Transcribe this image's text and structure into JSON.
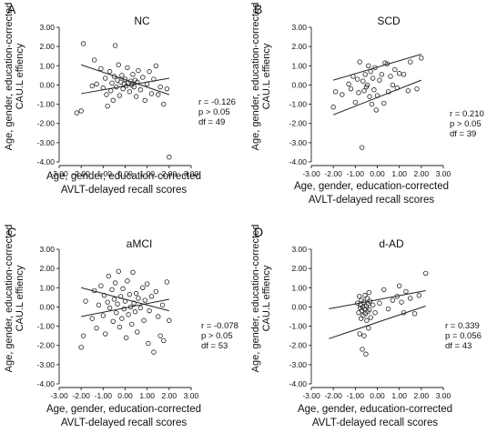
{
  "figure": {
    "panels": [
      {
        "letter": "A",
        "title": "NC",
        "ylabel_1": "Age, gender, education-corrected",
        "ylabel_2": "CAU.L effiency",
        "xlabel_1": "Age, gender, education-corrected",
        "xlabel_2": "AVLT-delayed recall scores",
        "stats": {
          "r": "r = -0.126",
          "p": "p > 0.05",
          "df": "df = 49"
        }
      },
      {
        "letter": "B",
        "title": "SCD",
        "ylabel_1": "Age, gender, education-corrected",
        "ylabel_2": "CAU.L effiency",
        "xlabel_1": "Age, gender, education-corrected",
        "xlabel_2": "AVLT-delayed recall scores",
        "stats": {
          "r": "r = 0.210",
          "p": "p > 0.05",
          "df": "df = 39"
        }
      },
      {
        "letter": "C",
        "title": "aMCI",
        "ylabel_1": "Age, gender, education-corrected",
        "ylabel_2": "CAU.L effiency",
        "xlabel_1": "Age, gender, education-corrected",
        "xlabel_2": "AVLT-delayed recall scores",
        "stats": {
          "r": "r = -0.078",
          "p": "p > 0.05",
          "df": "df = 53"
        }
      },
      {
        "letter": "D",
        "title": "d-AD",
        "ylabel_1": "Age, gender, education-corrected",
        "ylabel_2": "CAU.L effiency",
        "xlabel_1": "Age, gender, education-corrected",
        "xlabel_2": "AVLT-delayed recall scores",
        "stats": {
          "r": "r = 0.339",
          "p": "p = 0.056",
          "df": "df = 43"
        }
      }
    ]
  },
  "chart_data": [
    {
      "type": "scatter",
      "panel": "A",
      "title": "NC",
      "xlabel": "Age, gender, education-corrected AVLT-delayed recall scores",
      "ylabel": "Age, gender, education-corrected CAU.L effiency",
      "xlim": [
        -3,
        3
      ],
      "ylim": [
        -4,
        3
      ],
      "xticks": [
        "-3.00",
        "-2.00",
        "-1.00",
        "0.00",
        "1.00",
        "2.00",
        "3.00"
      ],
      "yticks": [
        "3.00",
        "2.00",
        "1.00",
        "0.00",
        "-1.00",
        "-2.00",
        "-3.00",
        "-4.00"
      ],
      "grid": false,
      "fit_line": {
        "slope": -0.126,
        "intercept": 0.0
      },
      "ci_lines": {
        "upper": [
          [
            -2.0,
            1.05
          ],
          [
            2.0,
            -0.5
          ]
        ],
        "lower": [
          [
            -2.0,
            -0.45
          ],
          [
            2.0,
            0.35
          ]
        ]
      },
      "points": [
        [
          -2.2,
          -1.45
        ],
        [
          -2.0,
          -1.35
        ],
        [
          -1.9,
          2.15
        ],
        [
          -1.5,
          -0.05
        ],
        [
          -1.4,
          1.3
        ],
        [
          -1.3,
          0.05
        ],
        [
          -1.1,
          0.85
        ],
        [
          -1.0,
          -0.15
        ],
        [
          -0.9,
          0.35
        ],
        [
          -0.85,
          -0.5
        ],
        [
          -0.8,
          -1.1
        ],
        [
          -0.7,
          0.7
        ],
        [
          -0.65,
          -0.3
        ],
        [
          -0.6,
          0.1
        ],
        [
          -0.55,
          -0.8
        ],
        [
          -0.5,
          0.45
        ],
        [
          -0.45,
          2.05
        ],
        [
          -0.4,
          -0.1
        ],
        [
          -0.35,
          0.25
        ],
        [
          -0.3,
          1.05
        ],
        [
          -0.25,
          -0.55
        ],
        [
          -0.2,
          0.15
        ],
        [
          -0.15,
          0.5
        ],
        [
          -0.1,
          -0.2
        ],
        [
          -0.05,
          0.05
        ],
        [
          0.0,
          0.3
        ],
        [
          0.05,
          -0.05
        ],
        [
          0.1,
          0.9
        ],
        [
          0.15,
          0.1
        ],
        [
          0.2,
          -0.35
        ],
        [
          0.25,
          0.2
        ],
        [
          0.3,
          0.0
        ],
        [
          0.35,
          0.55
        ],
        [
          0.4,
          -0.1
        ],
        [
          0.45,
          0.25
        ],
        [
          0.5,
          -0.6
        ],
        [
          0.55,
          0.15
        ],
        [
          0.6,
          0.75
        ],
        [
          0.7,
          -0.25
        ],
        [
          0.8,
          0.4
        ],
        [
          0.9,
          -0.8
        ],
        [
          1.0,
          0.05
        ],
        [
          1.1,
          0.7
        ],
        [
          1.2,
          -0.45
        ],
        [
          1.3,
          0.3
        ],
        [
          1.4,
          1.0
        ],
        [
          1.5,
          -0.5
        ],
        [
          1.6,
          -0.1
        ],
        [
          1.75,
          -1.0
        ],
        [
          1.9,
          -0.2
        ],
        [
          2.0,
          -3.75
        ]
      ]
    },
    {
      "type": "scatter",
      "panel": "B",
      "title": "SCD",
      "xlabel": "Age, gender, education-corrected AVLT-delayed recall scores",
      "ylabel": "Age, gender, education-corrected CAU.L effiency",
      "xlim": [
        -3,
        3
      ],
      "ylim": [
        -4,
        3
      ],
      "xticks": [
        "-3.00",
        "-2.00",
        "-1.00",
        "0.00",
        "1.00",
        "2.00",
        "3.00"
      ],
      "yticks": [
        "3.00",
        "2.00",
        "1.00",
        "0.00",
        "-1.00",
        "-2.00",
        "-3.00",
        "-4.00"
      ],
      "grid": false,
      "fit_line": {
        "slope": 0.21,
        "intercept": 0.0
      },
      "ci_lines": {
        "upper": [
          [
            -2.0,
            0.25
          ],
          [
            2.0,
            1.6
          ]
        ],
        "lower": [
          [
            -2.0,
            -1.55
          ],
          [
            2.0,
            0.25
          ]
        ]
      },
      "points": [
        [
          -2.0,
          -1.15
        ],
        [
          -1.9,
          -0.35
        ],
        [
          -1.6,
          -0.5
        ],
        [
          -1.3,
          0.05
        ],
        [
          -1.2,
          -0.2
        ],
        [
          -1.1,
          0.45
        ],
        [
          -1.0,
          -0.9
        ],
        [
          -0.9,
          0.3
        ],
        [
          -0.85,
          -0.4
        ],
        [
          -0.8,
          1.2
        ],
        [
          -0.7,
          -3.25
        ],
        [
          -0.65,
          0.2
        ],
        [
          -0.6,
          -0.3
        ],
        [
          -0.55,
          0.55
        ],
        [
          -0.5,
          -0.1
        ],
        [
          -0.45,
          0.0
        ],
        [
          -0.4,
          1.0
        ],
        [
          -0.35,
          -0.6
        ],
        [
          -0.3,
          0.7
        ],
        [
          -0.25,
          -1.0
        ],
        [
          -0.2,
          0.35
        ],
        [
          -0.15,
          -0.25
        ],
        [
          -0.1,
          0.9
        ],
        [
          -0.05,
          -1.3
        ],
        [
          0.0,
          -0.55
        ],
        [
          0.1,
          0.25
        ],
        [
          0.2,
          0.55
        ],
        [
          0.3,
          -0.95
        ],
        [
          0.35,
          1.15
        ],
        [
          0.45,
          1.1
        ],
        [
          0.5,
          -0.35
        ],
        [
          0.6,
          0.45
        ],
        [
          0.7,
          0.0
        ],
        [
          0.8,
          0.8
        ],
        [
          0.9,
          -0.15
        ],
        [
          1.0,
          0.6
        ],
        [
          1.2,
          0.55
        ],
        [
          1.4,
          -0.3
        ],
        [
          1.5,
          1.2
        ],
        [
          1.8,
          -0.2
        ],
        [
          2.0,
          1.4
        ]
      ]
    },
    {
      "type": "scatter",
      "panel": "C",
      "title": "aMCI",
      "xlabel": "Age, gender, education-corrected AVLT-delayed recall scores",
      "ylabel": "Age, gender, education-corrected CAU.L effiency",
      "xlim": [
        -3,
        3
      ],
      "ylim": [
        -4,
        3
      ],
      "xticks": [
        "-3.00",
        "-2.00",
        "-1.00",
        "0.00",
        "1.00",
        "2.00",
        "3.00"
      ],
      "yticks": [
        "3.00",
        "2.00",
        "1.00",
        "0.00",
        "-1.00",
        "-2.00",
        "-3.00",
        "-4.00"
      ],
      "grid": false,
      "fit_line": {
        "slope": -0.078,
        "intercept": 0.0
      },
      "ci_lines": {
        "upper": [
          [
            -2.0,
            1.0
          ],
          [
            2.0,
            -0.2
          ]
        ],
        "lower": [
          [
            -2.0,
            -0.5
          ],
          [
            2.0,
            0.4
          ]
        ]
      },
      "points": [
        [
          -2.0,
          -2.1
        ],
        [
          -1.9,
          -1.5
        ],
        [
          -1.8,
          0.3
        ],
        [
          -1.5,
          -0.6
        ],
        [
          -1.4,
          0.85
        ],
        [
          -1.3,
          -1.1
        ],
        [
          -1.2,
          0.1
        ],
        [
          -1.1,
          1.1
        ],
        [
          -1.0,
          -0.45
        ],
        [
          -0.95,
          0.6
        ],
        [
          -0.9,
          -1.4
        ],
        [
          -0.8,
          0.25
        ],
        [
          -0.75,
          1.6
        ],
        [
          -0.7,
          -0.05
        ],
        [
          -0.6,
          0.9
        ],
        [
          -0.55,
          -0.75
        ],
        [
          -0.5,
          0.4
        ],
        [
          -0.45,
          1.25
        ],
        [
          -0.4,
          -0.3
        ],
        [
          -0.35,
          0.15
        ],
        [
          -0.3,
          1.85
        ],
        [
          -0.25,
          -1.05
        ],
        [
          -0.2,
          0.55
        ],
        [
          -0.15,
          -0.6
        ],
        [
          -0.1,
          0.95
        ],
        [
          -0.05,
          -0.1
        ],
        [
          0.0,
          0.3
        ],
        [
          0.05,
          -1.6
        ],
        [
          0.1,
          1.35
        ],
        [
          0.15,
          -0.4
        ],
        [
          0.2,
          0.65
        ],
        [
          0.25,
          0.0
        ],
        [
          0.3,
          -0.9
        ],
        [
          0.35,
          1.8
        ],
        [
          0.4,
          0.2
        ],
        [
          0.45,
          -0.25
        ],
        [
          0.5,
          0.7
        ],
        [
          0.55,
          -1.3
        ],
        [
          0.6,
          0.45
        ],
        [
          0.7,
          -0.05
        ],
        [
          0.8,
          1.0
        ],
        [
          0.85,
          -0.7
        ],
        [
          0.9,
          0.35
        ],
        [
          1.0,
          1.2
        ],
        [
          1.05,
          -1.9
        ],
        [
          1.1,
          -0.2
        ],
        [
          1.2,
          0.55
        ],
        [
          1.3,
          -2.35
        ],
        [
          1.4,
          0.8
        ],
        [
          1.5,
          -0.5
        ],
        [
          1.6,
          -1.5
        ],
        [
          1.7,
          0.1
        ],
        [
          1.75,
          -1.75
        ],
        [
          1.9,
          1.3
        ],
        [
          2.0,
          -0.7
        ]
      ]
    },
    {
      "type": "scatter",
      "panel": "D",
      "title": "d-AD",
      "xlabel": "Age, gender, education-corrected AVLT-delayed recall scores",
      "ylabel": "Age, gender, education-corrected CAU.L effiency",
      "xlim": [
        -3,
        3
      ],
      "ylim": [
        -4,
        3
      ],
      "xticks": [
        "-3.00",
        "-2.00",
        "-1.00",
        "0.00",
        "1.00",
        "2.00",
        "3.00"
      ],
      "yticks": [
        "3.00",
        "2.00",
        "1.00",
        "0.00",
        "-1.00",
        "-2.00",
        "-3.00",
        "-4.00"
      ],
      "grid": false,
      "fit_line": {
        "slope": 0.339,
        "intercept": 0.15
      },
      "ci_lines": {
        "upper": [
          [
            -2.2,
            -0.1
          ],
          [
            2.2,
            0.85
          ]
        ],
        "lower": [
          [
            -2.2,
            -1.65
          ],
          [
            2.2,
            0.05
          ]
        ]
      },
      "points": [
        [
          -0.9,
          0.2
        ],
        [
          -0.85,
          -0.3
        ],
        [
          -0.82,
          0.55
        ],
        [
          -0.8,
          -1.4
        ],
        [
          -0.78,
          -0.05
        ],
        [
          -0.76,
          0.1
        ],
        [
          -0.74,
          -0.6
        ],
        [
          -0.72,
          0.35
        ],
        [
          -0.7,
          -0.2
        ],
        [
          -0.68,
          -2.2
        ],
        [
          -0.66,
          0.0
        ],
        [
          -0.64,
          -0.45
        ],
        [
          -0.62,
          0.25
        ],
        [
          -0.6,
          -1.5
        ],
        [
          -0.58,
          -0.1
        ],
        [
          -0.56,
          0.6
        ],
        [
          -0.54,
          -0.35
        ],
        [
          -0.52,
          -2.45
        ],
        [
          -0.5,
          0.05
        ],
        [
          -0.48,
          -0.7
        ],
        [
          -0.46,
          0.45
        ],
        [
          -0.44,
          -0.25
        ],
        [
          -0.42,
          0.15
        ],
        [
          -0.4,
          -1.1
        ],
        [
          -0.38,
          0.75
        ],
        [
          -0.36,
          -0.15
        ],
        [
          -0.34,
          0.3
        ],
        [
          -0.3,
          -0.55
        ],
        [
          -0.2,
          0.1
        ],
        [
          -0.1,
          -0.3
        ],
        [
          0.1,
          0.2
        ],
        [
          0.3,
          0.9
        ],
        [
          0.5,
          -0.1
        ],
        [
          0.7,
          0.35
        ],
        [
          0.9,
          0.55
        ],
        [
          1.0,
          1.1
        ],
        [
          1.1,
          0.25
        ],
        [
          1.2,
          -0.3
        ],
        [
          1.3,
          0.8
        ],
        [
          1.5,
          0.45
        ],
        [
          1.7,
          -0.35
        ],
        [
          1.9,
          0.6
        ],
        [
          2.2,
          1.75
        ]
      ]
    }
  ]
}
